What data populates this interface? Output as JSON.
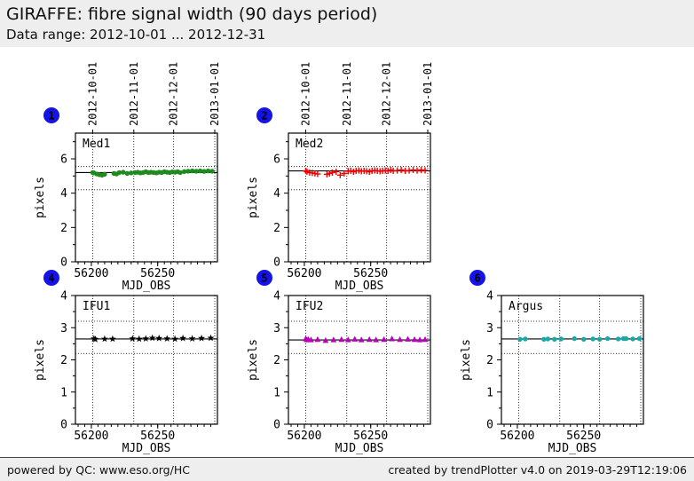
{
  "header": {
    "title": "GIRAFFE: fibre signal width (90 days period)",
    "subtitle": "Data range: 2012-10-01 ... 2012-12-31"
  },
  "footer": {
    "left": "powered by QC: www.eso.org/HC",
    "right": "created by trendPlotter v4.0 on 2019-03-29T12:19:06"
  },
  "colors": {
    "badge_blue": "#1414e8",
    "header_bg": "#eeeeee",
    "grid_line": "#000000"
  },
  "chart_data": [
    {
      "type": "scatter",
      "index": "1",
      "label": "Med1",
      "marker": "circle",
      "color": "#1f8a1f",
      "xlabel": "MJD_OBS",
      "ylabel": "pixels",
      "xlim": [
        56188,
        56295
      ],
      "ylim": [
        0,
        7.5
      ],
      "xticks": [
        56200,
        56250
      ],
      "yticks": [
        0,
        2,
        4,
        6
      ],
      "yticks_minor": [
        1,
        3,
        5,
        7
      ],
      "top_axis_dates": [
        "2012-10-01",
        "2012-11-01",
        "2012-12-01",
        "2013-01-01"
      ],
      "date_gridlines_mjd": [
        56201,
        56232,
        56262,
        56293
      ],
      "avg_line": 5.2,
      "thresholds": [
        5.55,
        4.2
      ],
      "x": [
        56201,
        56202,
        56204,
        56206,
        56208,
        56210,
        56217,
        56219,
        56221,
        56224,
        56227,
        56230,
        56233,
        56235,
        56237,
        56239,
        56241,
        56243,
        56245,
        56247,
        56249,
        56251,
        56253,
        56255,
        56257,
        56259,
        56261,
        56263,
        56265,
        56267,
        56270,
        56273,
        56276,
        56279,
        56282,
        56285,
        56288,
        56291
      ],
      "y": [
        5.2,
        5.18,
        5.12,
        5.08,
        5.05,
        5.1,
        5.15,
        5.12,
        5.2,
        5.22,
        5.15,
        5.18,
        5.2,
        5.22,
        5.18,
        5.2,
        5.25,
        5.2,
        5.22,
        5.2,
        5.18,
        5.22,
        5.2,
        5.25,
        5.22,
        5.2,
        5.24,
        5.22,
        5.25,
        5.2,
        5.26,
        5.28,
        5.3,
        5.28,
        5.3,
        5.27,
        5.3,
        5.28
      ]
    },
    {
      "type": "scatter",
      "index": "2",
      "label": "Med2",
      "marker": "plus",
      "color": "#ee0000",
      "xlabel": "MJD_OBS",
      "ylabel": "pixels",
      "xlim": [
        56188,
        56295
      ],
      "ylim": [
        0,
        7.5
      ],
      "xticks": [
        56200,
        56250
      ],
      "yticks": [
        0,
        2,
        4,
        6
      ],
      "yticks_minor": [
        1,
        3,
        5,
        7
      ],
      "top_axis_dates": [
        "2012-10-01",
        "2012-11-01",
        "2012-12-01",
        "2013-01-01"
      ],
      "date_gridlines_mjd": [
        56201,
        56232,
        56262,
        56293
      ],
      "avg_line": 5.3,
      "thresholds": [
        5.55,
        4.2
      ],
      "x": [
        56201,
        56202,
        56204,
        56206,
        56208,
        56210,
        56217,
        56219,
        56221,
        56224,
        56227,
        56230,
        56233,
        56235,
        56237,
        56239,
        56241,
        56243,
        56245,
        56247,
        56249,
        56251,
        56253,
        56255,
        56257,
        56259,
        56261,
        56263,
        56265,
        56267,
        56270,
        56273,
        56276,
        56279,
        56282,
        56285,
        56288,
        56291
      ],
      "y": [
        5.3,
        5.25,
        5.2,
        5.18,
        5.15,
        5.12,
        5.1,
        5.15,
        5.2,
        5.25,
        5.05,
        5.15,
        5.28,
        5.3,
        5.25,
        5.3,
        5.32,
        5.28,
        5.3,
        5.28,
        5.25,
        5.3,
        5.32,
        5.3,
        5.28,
        5.3,
        5.32,
        5.3,
        5.35,
        5.3,
        5.32,
        5.35,
        5.3,
        5.32,
        5.35,
        5.32,
        5.35,
        5.33
      ]
    },
    {
      "type": "scatter",
      "index": "4",
      "label": "IFU1",
      "marker": "star",
      "color": "#000000",
      "xlabel": "MJD_OBS",
      "ylabel": "pixels",
      "xlim": [
        56188,
        56295
      ],
      "ylim": [
        0,
        4
      ],
      "xticks": [
        56200,
        56250
      ],
      "yticks": [
        0,
        1,
        2,
        3,
        4
      ],
      "yticks_minor": [
        0.5,
        1.5,
        2.5,
        3.5
      ],
      "top_axis_dates": [],
      "date_gridlines_mjd": [
        56201,
        56232,
        56262,
        56293
      ],
      "avg_line": 2.65,
      "thresholds": [
        3.2,
        2.2
      ],
      "x": [
        56202,
        56203,
        56210,
        56216,
        56231,
        56236,
        56241,
        56246,
        56251,
        56257,
        56263,
        56269,
        56276,
        56283,
        56290
      ],
      "y": [
        2.66,
        2.64,
        2.65,
        2.65,
        2.66,
        2.65,
        2.66,
        2.68,
        2.67,
        2.66,
        2.65,
        2.67,
        2.66,
        2.67,
        2.68
      ]
    },
    {
      "type": "scatter",
      "index": "5",
      "label": "IFU2",
      "marker": "triangle",
      "color": "#bb00bb",
      "xlabel": "MJD_OBS",
      "ylabel": "pixels",
      "xlim": [
        56188,
        56295
      ],
      "ylim": [
        0,
        4
      ],
      "xticks": [
        56200,
        56250
      ],
      "yticks": [
        0,
        1,
        2,
        3,
        4
      ],
      "yticks_minor": [
        0.5,
        1.5,
        2.5,
        3.5
      ],
      "top_axis_dates": [],
      "date_gridlines_mjd": [
        56201,
        56232,
        56262,
        56293
      ],
      "avg_line": 2.62,
      "thresholds": [
        3.2,
        2.2
      ],
      "x": [
        56201,
        56202,
        56203,
        56205,
        56210,
        56216,
        56222,
        56228,
        56233,
        56238,
        56243,
        56249,
        56254,
        56260,
        56266,
        56272,
        56278,
        56283,
        56287,
        56291
      ],
      "y": [
        2.65,
        2.62,
        2.63,
        2.62,
        2.63,
        2.6,
        2.62,
        2.63,
        2.62,
        2.64,
        2.62,
        2.63,
        2.62,
        2.63,
        2.65,
        2.63,
        2.64,
        2.63,
        2.62,
        2.63
      ]
    },
    {
      "type": "scatter",
      "index": "6",
      "label": "Argus",
      "marker": "dot",
      "color": "#18a8a8",
      "xlabel": "MJD_OBS",
      "ylabel": "pixels",
      "xlim": [
        56188,
        56295
      ],
      "ylim": [
        0,
        4
      ],
      "xticks": [
        56200,
        56250
      ],
      "yticks": [
        0,
        1,
        2,
        3,
        4
      ],
      "yticks_minor": [
        0.5,
        1.5,
        2.5,
        3.5
      ],
      "top_axis_dates": [],
      "date_gridlines_mjd": [
        56201,
        56232,
        56262,
        56293
      ],
      "avg_line": 2.65,
      "thresholds": [
        3.2,
        2.2
      ],
      "x": [
        56202,
        56206,
        56220,
        56223,
        56228,
        56233,
        56243,
        56250,
        56257,
        56262,
        56268,
        56276,
        56280,
        56282,
        56287,
        56292
      ],
      "y": [
        2.64,
        2.65,
        2.64,
        2.65,
        2.64,
        2.65,
        2.66,
        2.64,
        2.65,
        2.64,
        2.66,
        2.65,
        2.66,
        2.66,
        2.65,
        2.66
      ]
    }
  ]
}
